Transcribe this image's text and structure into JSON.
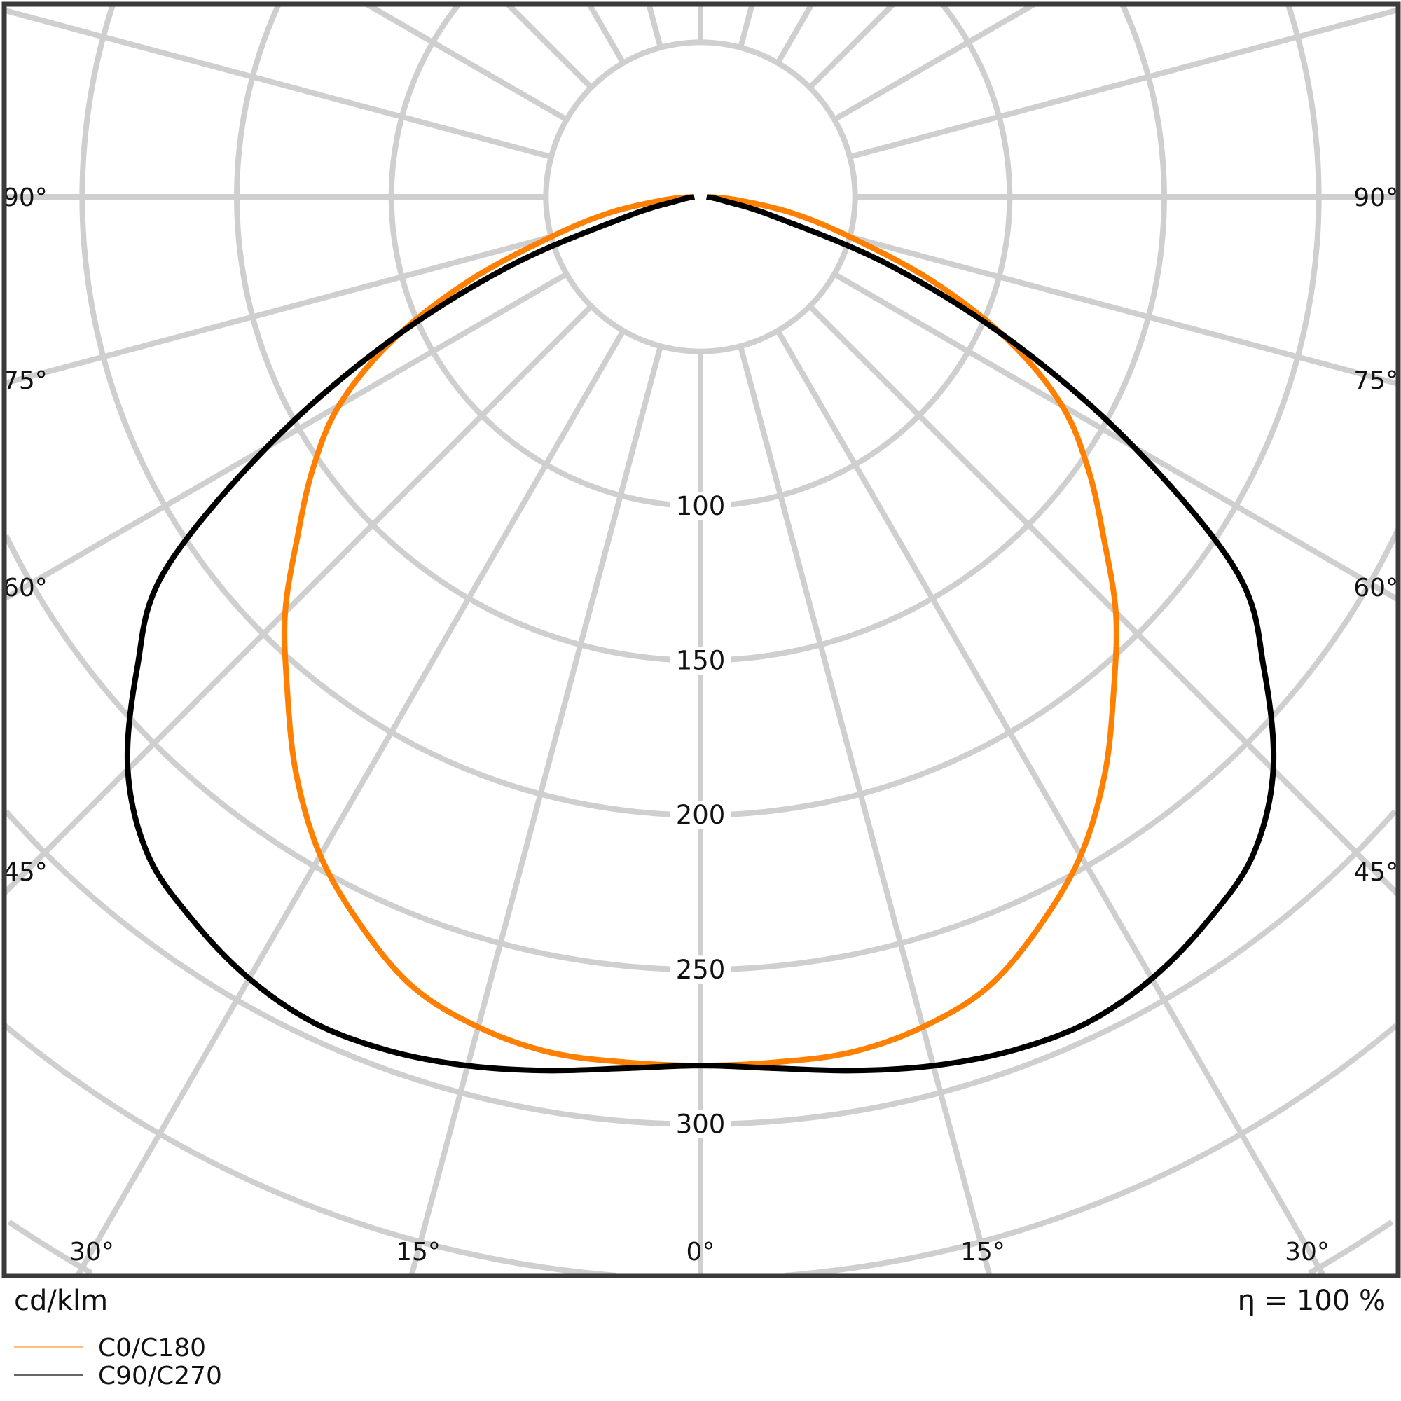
{
  "chart_data": {
    "type": "polar",
    "unit_label": "cd/klm",
    "efficiency_label": "η = 100 %",
    "radial_ticks": [
      50,
      100,
      150,
      200,
      250,
      300,
      350,
      400,
      450
    ],
    "radial_tick_labels": [
      "100",
      "150",
      "200",
      "250",
      "300"
    ],
    "angle_tick_step": 15,
    "side_angle_labels": [
      "90°",
      "75°",
      "60°",
      "45°"
    ],
    "bottom_angle_labels": [
      "30°",
      "15°",
      "0°",
      "15°",
      "30°"
    ],
    "grid": true,
    "legend_position": "bottom-left",
    "gamma": [
      0,
      5,
      10,
      15,
      20,
      25,
      30,
      35,
      40,
      45,
      50,
      55,
      60,
      65,
      70,
      75,
      80,
      85,
      90
    ],
    "series": [
      {
        "name": "C0/C180",
        "color": "#ff8000",
        "values": [
          281,
          281,
          281,
          278,
          272,
          260,
          246,
          228,
          208,
          190,
          170,
          153,
          135,
          110,
          80,
          50,
          30,
          12,
          3
        ]
      },
      {
        "name": "C90/C270",
        "color": "#000000",
        "values": [
          281,
          283,
          287,
          291,
          294,
          295,
          292,
          286,
          278,
          262,
          238,
          212,
          162,
          112,
          66,
          25,
          8,
          4,
          2
        ]
      }
    ]
  }
}
